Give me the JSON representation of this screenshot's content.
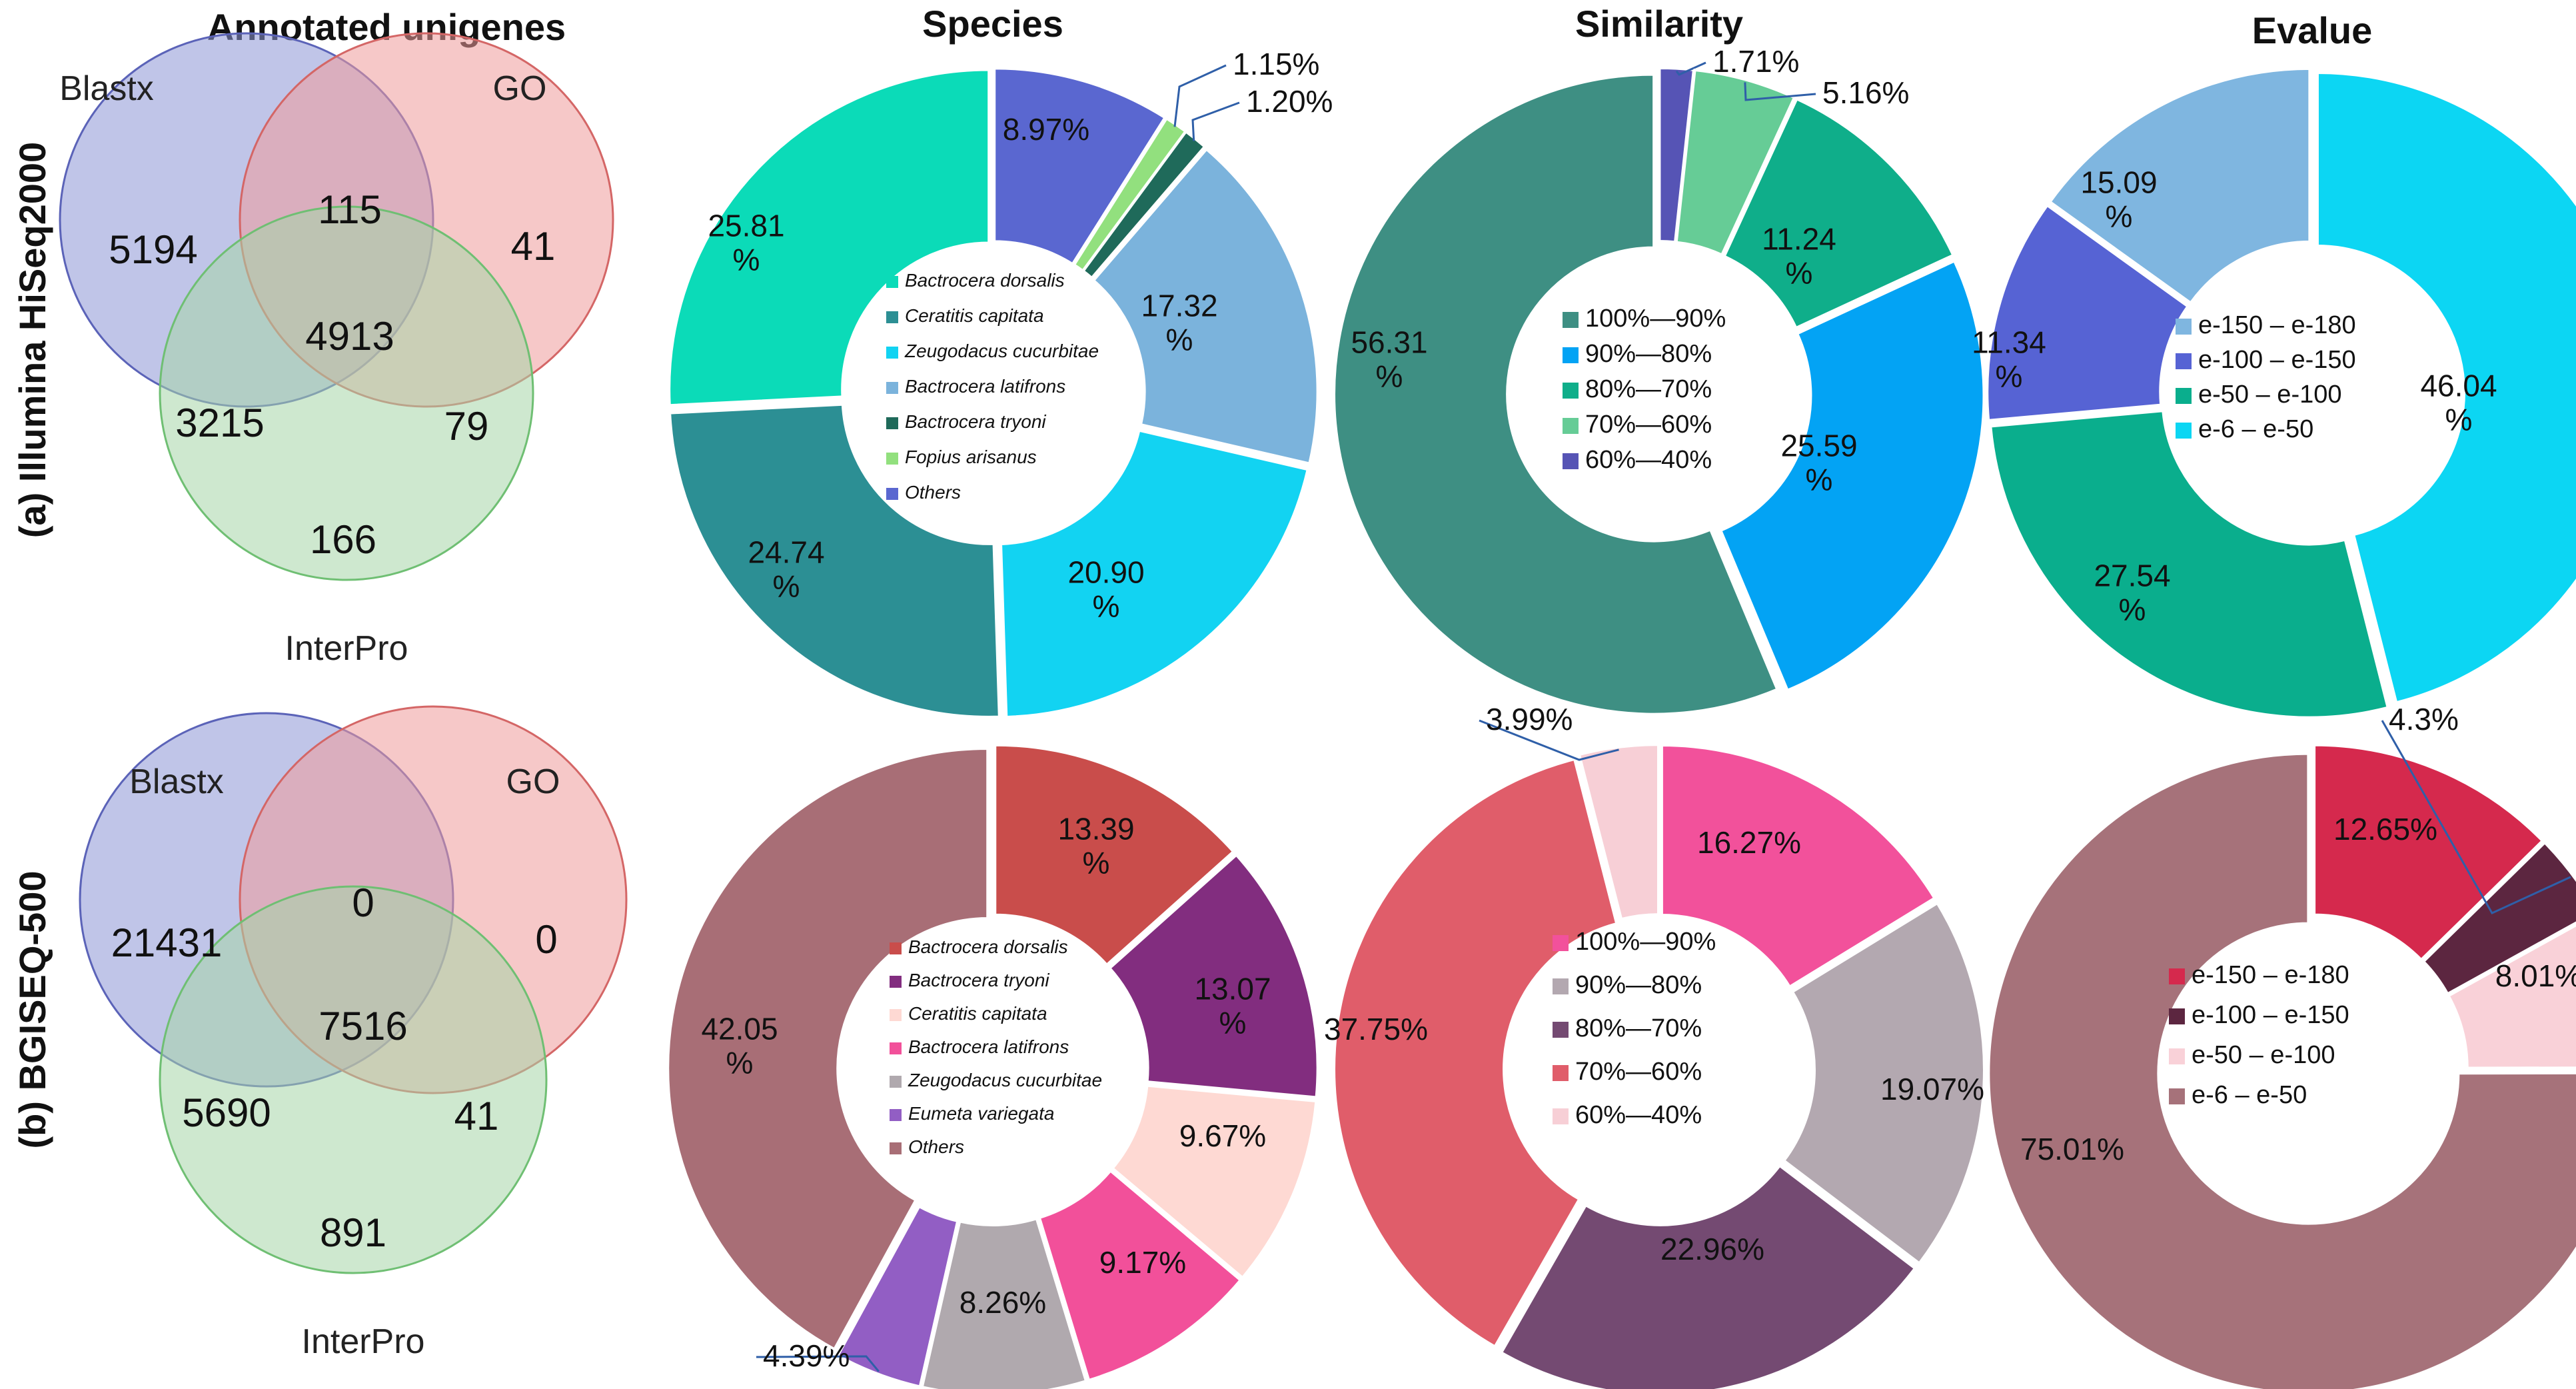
{
  "column_titles": [
    "Annotated unigenes",
    "Species",
    "Similarity",
    "Evalue"
  ],
  "row_labels": [
    "(a) Illumina HiSeq2000",
    "(b) BGISEQ-500"
  ],
  "venn": [
    {
      "sets": [
        "Blastx",
        "GO",
        "InterPro"
      ],
      "counts": {
        "blastx_only": "5194",
        "blastx_go": "115",
        "go_only": "41",
        "all_three": "4913",
        "blastx_interpro": "3215",
        "go_interpro": "79",
        "interpro_only": "166"
      },
      "colors": {
        "blastx": "#8d95d6",
        "go": "#ef9a9a",
        "interpro": "#a5d6a7"
      }
    },
    {
      "sets": [
        "Blastx",
        "GO",
        "InterPro"
      ],
      "counts": {
        "blastx_only": "21431",
        "blastx_go": "0",
        "go_only": "0",
        "all_three": "7516",
        "blastx_interpro": "5690",
        "go_interpro": "41",
        "interpro_only": "891"
      },
      "colors": {
        "blastx": "#8d95d6",
        "go": "#ef9a9a",
        "interpro": "#a5d6a7"
      }
    }
  ],
  "chart_data": [
    {
      "type": "pie",
      "variant": "donut",
      "panel": "(a) Species",
      "title": "Species",
      "start_angle": 0,
      "italic_legend": true,
      "segments": [
        {
          "label": "Others",
          "value": 8.97,
          "color": "#5a67d0",
          "text": "8.97%",
          "text_color": "#111"
        },
        {
          "label": "Fopius arisanus",
          "value": 1.15,
          "color": "#92e07e",
          "text": "1.15%",
          "callout": true
        },
        {
          "label": "Bactrocera tryoni",
          "value": 1.2,
          "color": "#1f6a5a",
          "text": "1.20%",
          "callout": true
        },
        {
          "label": "Bactrocera latifrons",
          "value": 17.32,
          "color": "#7bb3dc",
          "text": "17.32\n%"
        },
        {
          "label": "Zeugodacus cucurbitae",
          "value": 20.9,
          "color": "#12d3f2",
          "text": "20.90\n%"
        },
        {
          "label": "Ceratitis capitata",
          "value": 24.74,
          "color": "#2c8f94",
          "text": "24.74\n%"
        },
        {
          "label": "Bactrocera dorsalis",
          "value": 25.81,
          "color": "#0bdbb8",
          "text": "25.81\n%"
        }
      ],
      "legend": [
        {
          "label": "Bactrocera dorsalis",
          "color": "#0bdbb8"
        },
        {
          "label": "Ceratitis capitata",
          "color": "#2c8f94"
        },
        {
          "label": "Zeugodacus cucurbitae",
          "color": "#12d3f2"
        },
        {
          "label": "Bactrocera latifrons",
          "color": "#7bb3dc"
        },
        {
          "label": "Bactrocera tryoni",
          "color": "#1f6a5a"
        },
        {
          "label": "Fopius arisanus",
          "color": "#92e07e"
        },
        {
          "label": "Others",
          "color": "#5a67d0"
        }
      ]
    },
    {
      "type": "pie",
      "variant": "donut",
      "panel": "(a) Similarity",
      "title": "Similarity",
      "start_angle": 0,
      "italic_legend": false,
      "segments": [
        {
          "label": "60%—40%",
          "value": 1.71,
          "color": "#5654b5",
          "text": "1.71%",
          "callout": true
        },
        {
          "label": "70%—60%",
          "value": 5.16,
          "color": "#66cc96",
          "text": "5.16%",
          "callout": true
        },
        {
          "label": "80%—70%",
          "value": 11.24,
          "color": "#0fae8a",
          "text": "11.24\n%"
        },
        {
          "label": "90%—80%",
          "value": 25.59,
          "color": "#03a3f4",
          "text": "25.59\n%"
        },
        {
          "label": "100%—90%",
          "value": 56.31,
          "color": "#3e8f83",
          "text": "56.31\n%"
        }
      ],
      "legend": [
        {
          "label": "100%—90%",
          "color": "#3e8f83"
        },
        {
          "label": "90%—80%",
          "color": "#03a3f4"
        },
        {
          "label": "80%—70%",
          "color": "#0fae8a"
        },
        {
          "label": "70%—60%",
          "color": "#66cc96"
        },
        {
          "label": "60%—40%",
          "color": "#5654b5"
        }
      ]
    },
    {
      "type": "pie",
      "variant": "donut",
      "panel": "(a) Evalue",
      "title": "Evalue",
      "start_angle": 0,
      "italic_legend": false,
      "segments": [
        {
          "label": "e-6 – e-50",
          "value": 46.04,
          "color": "#0cd6f3",
          "text": "46.04\n%"
        },
        {
          "label": "e-50 – e-100",
          "value": 27.54,
          "color": "#0aae8d",
          "text": "27.54\n%"
        },
        {
          "label": "e-100 – e-150",
          "value": 11.34,
          "color": "#5663d4",
          "text": "11.34\n%"
        },
        {
          "label": "e-150 – e-180",
          "value": 15.09,
          "color": "#7fb6e0",
          "text": "15.09\n%"
        }
      ],
      "legend": [
        {
          "label": "e-150 – e-180",
          "color": "#7fb6e0"
        },
        {
          "label": "e-100 – e-150",
          "color": "#5663d4"
        },
        {
          "label": "e-50 – e-100",
          "color": "#0aae8d"
        },
        {
          "label": "e-6 – e-50",
          "color": "#0cd6f3"
        }
      ]
    },
    {
      "type": "pie",
      "variant": "donut",
      "panel": "(b) Species",
      "title": "Species",
      "start_angle": 0,
      "italic_legend": true,
      "segments": [
        {
          "label": "Bactrocera dorsalis",
          "value": 13.39,
          "color": "#c94d4b",
          "text": "13.39\n%"
        },
        {
          "label": "Bactrocera tryoni",
          "value": 13.07,
          "color": "#822d7f",
          "text": "13.07\n%"
        },
        {
          "label": "Ceratitis capitata",
          "value": 9.67,
          "color": "#fed9d3",
          "text": "9.67%"
        },
        {
          "label": "Bactrocera latifrons",
          "value": 9.17,
          "color": "#f2509a",
          "text": "9.17%"
        },
        {
          "label": "Zeugodacus cucurbitae",
          "value": 8.26,
          "color": "#b0a9ae",
          "text": "8.26%"
        },
        {
          "label": "Eumeta variegata",
          "value": 4.39,
          "color": "#925ec4",
          "text": "4.39%",
          "callout": true
        },
        {
          "label": "Others",
          "value": 42.05,
          "color": "#a86e76",
          "text": "42.05\n%"
        }
      ],
      "legend": [
        {
          "label": "Bactrocera dorsalis",
          "color": "#c94d4b"
        },
        {
          "label": "Bactrocera tryoni",
          "color": "#822d7f"
        },
        {
          "label": "Ceratitis capitata",
          "color": "#fed9d3"
        },
        {
          "label": "Bactrocera latifrons",
          "color": "#f2509a"
        },
        {
          "label": "Zeugodacus cucurbitae",
          "color": "#b0a9ae"
        },
        {
          "label": "Eumeta variegata",
          "color": "#925ec4"
        },
        {
          "label": "Others",
          "color": "#a86e76"
        }
      ]
    },
    {
      "type": "pie",
      "variant": "donut",
      "panel": "(b) Similarity",
      "title": "Similarity",
      "start_angle": 0,
      "italic_legend": false,
      "segments": [
        {
          "label": "100%—90%",
          "value": 16.27,
          "color": "#f2519b",
          "text": "16.27%"
        },
        {
          "label": "90%—80%",
          "value": 19.07,
          "color": "#b3a8b0",
          "text": "19.07%"
        },
        {
          "label": "80%—70%",
          "value": 22.96,
          "color": "#744a72",
          "text": "22.96%"
        },
        {
          "label": "70%—60%",
          "value": 37.75,
          "color": "#e05d6a",
          "text": "37.75%"
        },
        {
          "label": "60%—40%",
          "value": 3.99,
          "color": "#f7cfd6",
          "text": "3.99%",
          "callout": true
        }
      ],
      "legend": [
        {
          "label": "100%—90%",
          "color": "#f2519b"
        },
        {
          "label": "90%—80%",
          "color": "#b3a8b0"
        },
        {
          "label": "80%—70%",
          "color": "#744a72"
        },
        {
          "label": "70%—60%",
          "color": "#e05d6a"
        },
        {
          "label": "60%—40%",
          "color": "#f7cfd6"
        }
      ]
    },
    {
      "type": "pie",
      "variant": "donut",
      "panel": "(b) Evalue",
      "title": "Evalue",
      "start_angle": 0,
      "italic_legend": false,
      "segments": [
        {
          "label": "e-150 – e-180",
          "value": 12.65,
          "color": "#d5294d",
          "text": "12.65%"
        },
        {
          "label": "e-100 – e-150",
          "value": 4.3,
          "color": "#5c2640",
          "text": "4.3%",
          "callout": true
        },
        {
          "label": "e-50 – e-100",
          "value": 8.01,
          "color": "#f9d1d8",
          "text": "8.01%"
        },
        {
          "label": "e-6 – e-50",
          "value": 75.01,
          "color": "#a6727a",
          "text": "75.01%"
        }
      ],
      "legend": [
        {
          "label": "e-150 – e-180",
          "color": "#d5294d"
        },
        {
          "label": "e-100 – e-150",
          "color": "#5c2640"
        },
        {
          "label": "e-50 – e-100",
          "color": "#f9d1d8"
        },
        {
          "label": "e-6 – e-50",
          "color": "#a6727a"
        }
      ]
    }
  ]
}
